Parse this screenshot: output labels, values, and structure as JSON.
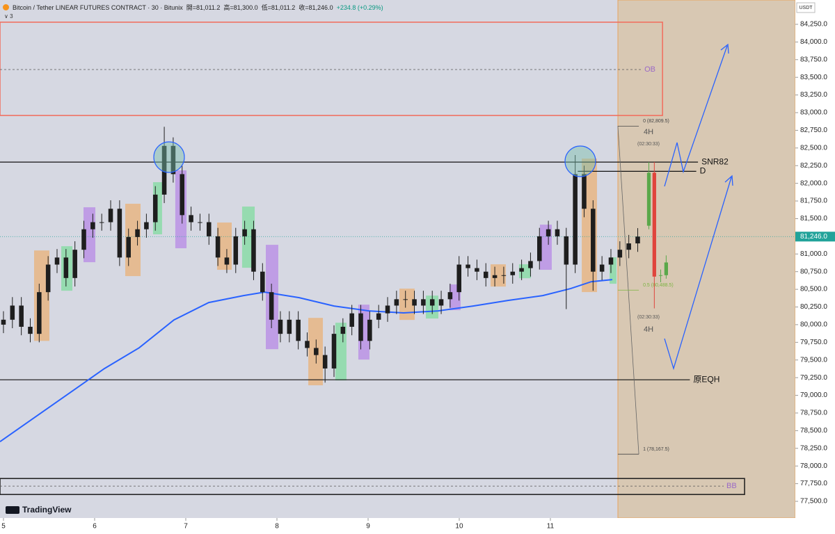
{
  "header": {
    "symbol": "Bitcoin / Tether LINEAR FUTURES CONTRACT · 30 · Bitunix",
    "open": "開=81,011.2",
    "high": "高=81,300.0",
    "low": "低=81,011.2",
    "close": "收=81,246.0",
    "change": "+234.8 (+0.29%)",
    "indicators": "3",
    "currency": "USDT",
    "logo": "TradingView"
  },
  "annotations": [
    "4H",
    "(02:30:33)",
    "(02:30:33)",
    "4H"
  ],
  "chart_data": {
    "type": "candlestick",
    "xlim": [
      4.962,
      13.687
    ],
    "ylim": [
      77264,
      84594
    ],
    "xticks": [
      5,
      6,
      7,
      8,
      9,
      10,
      11
    ],
    "yticks": [
      {
        "value": 77500,
        "label": "77,500.0"
      },
      {
        "value": 77750,
        "label": "77,750.0"
      },
      {
        "value": 78000,
        "label": "78,000.0"
      },
      {
        "value": 78250,
        "label": "78,250.0"
      },
      {
        "value": 78500,
        "label": "78,500.0"
      },
      {
        "value": 78750,
        "label": "78,750.0"
      },
      {
        "value": 79000,
        "label": "79,000.0"
      },
      {
        "value": 79250,
        "label": "79,250.0"
      },
      {
        "value": 79500,
        "label": "79,500.0"
      },
      {
        "value": 79750,
        "label": "79,750.0"
      },
      {
        "value": 80000,
        "label": "80,000.0"
      },
      {
        "value": 80250,
        "label": "80,250.0"
      },
      {
        "value": 80500,
        "label": "80,500.0"
      },
      {
        "value": 80750,
        "label": "80,750.0"
      },
      {
        "value": 81000,
        "label": "81,000.0"
      },
      {
        "value": 81250,
        "label": "81,250.0"
      },
      {
        "value": 81500,
        "label": "81,500.0"
      },
      {
        "value": 81750,
        "label": "81,750.0"
      },
      {
        "value": 82000,
        "label": "82,000.0"
      },
      {
        "value": 82250,
        "label": "82,250.0"
      },
      {
        "value": 82500,
        "label": "82,500.0"
      },
      {
        "value": 82750,
        "label": "82,750.0"
      },
      {
        "value": 83000,
        "label": "83,000.0"
      },
      {
        "value": 83250,
        "label": "83,250.0"
      },
      {
        "value": 83500,
        "label": "83,500.0"
      },
      {
        "value": 83750,
        "label": "83,750.0"
      },
      {
        "value": 84000,
        "label": "84,000.0"
      },
      {
        "value": 84250,
        "label": "84,250.0"
      }
    ],
    "boxes": [
      {
        "x0": 5.336,
        "x1": 5.504,
        "top": 81050,
        "bottom": 79770,
        "color": "#e8b47e"
      },
      {
        "x0": 5.634,
        "x1": 5.756,
        "top": 81110,
        "bottom": 80480,
        "color": "#86dca4"
      },
      {
        "x0": 5.878,
        "x1": 6.008,
        "top": 81661,
        "bottom": 80884,
        "color": "#b98ee6"
      },
      {
        "x0": 6.336,
        "x1": 6.504,
        "top": 81711,
        "bottom": 80687,
        "color": "#e8b47e"
      },
      {
        "x0": 6.641,
        "x1": 6.74,
        "top": 82016,
        "bottom": 81278,
        "color": "#86dca4"
      },
      {
        "x0": 6.885,
        "x1": 7.008,
        "top": 82183,
        "bottom": 81081,
        "color": "#b98ee6"
      },
      {
        "x0": 7.344,
        "x1": 7.504,
        "top": 81445,
        "bottom": 80776,
        "color": "#e8b47e"
      },
      {
        "x0": 7.618,
        "x1": 7.756,
        "top": 81671,
        "bottom": 80805,
        "color": "#86dca4"
      },
      {
        "x0": 7.878,
        "x1": 8.015,
        "top": 81130,
        "bottom": 79653,
        "color": "#b98ee6"
      },
      {
        "x0": 8.344,
        "x1": 8.504,
        "top": 80096,
        "bottom": 79142,
        "color": "#e8b47e"
      },
      {
        "x0": 8.641,
        "x1": 8.763,
        "top": 80027,
        "bottom": 79211,
        "color": "#86dca4"
      },
      {
        "x0": 8.893,
        "x1": 9.015,
        "top": 80283,
        "bottom": 79506,
        "color": "#b98ee6"
      },
      {
        "x0": 9.344,
        "x1": 9.511,
        "top": 80510,
        "bottom": 80067,
        "color": "#e8b47e"
      },
      {
        "x0": 9.634,
        "x1": 9.771,
        "top": 80411,
        "bottom": 80087,
        "color": "#86dca4"
      },
      {
        "x0": 9.893,
        "x1": 10.015,
        "top": 80569,
        "bottom": 80205,
        "color": "#b98ee6"
      },
      {
        "x0": 10.344,
        "x1": 10.511,
        "top": 80854,
        "bottom": 80539,
        "color": "#e8b47e"
      },
      {
        "x0": 10.656,
        "x1": 10.786,
        "top": 80854,
        "bottom": 80657,
        "color": "#86dca4"
      },
      {
        "x0": 10.885,
        "x1": 11.015,
        "top": 81415,
        "bottom": 80776,
        "color": "#b98ee6"
      },
      {
        "x0": 11.344,
        "x1": 11.511,
        "top": 82350,
        "bottom": 80461,
        "color": "#e8b47e"
      },
      {
        "x0": 11.649,
        "x1": 11.725,
        "top": 80953,
        "bottom": 80579,
        "color": "#86dca4"
      }
    ],
    "zones": [
      {
        "label": "OB",
        "x1": 12.23,
        "top": 84280,
        "bottom": 82960,
        "mid": 83610,
        "color": "#f26b5b",
        "label_color": "#9b6ac6"
      },
      {
        "label": "BB",
        "x1": 13.13,
        "top": 77823,
        "bottom": 77597,
        "mid": 77715,
        "color": "#1a1a1a",
        "label_color": "#9b6ac6"
      }
    ],
    "levels": [
      {
        "name": "SNR82",
        "value": 82300,
        "x0": 4.962,
        "x1": 12.619
      },
      {
        "name": "D",
        "value": 82170,
        "x0": 11.3,
        "x1": 12.6
      },
      {
        "name": "原EQH",
        "value": 79220,
        "x0": 4.962,
        "x1": 12.53
      }
    ],
    "ema": {
      "color": "#2962ff",
      "x": [
        4.962,
        5.344,
        5.725,
        6.107,
        6.489,
        6.87,
        7.252,
        7.634,
        7.863,
        8.244,
        8.626,
        9.008,
        9.389,
        9.771,
        10.153,
        10.534,
        10.916,
        11.221,
        11.45,
        11.679
      ],
      "values": [
        78344,
        78689,
        79033,
        79378,
        79673,
        80067,
        80313,
        80411,
        80461,
        80382,
        80264,
        80195,
        80166,
        80195,
        80264,
        80343,
        80411,
        80510,
        80608,
        80638
      ]
    },
    "candle_sets": [
      {
        "up_color": "#1e1e1e",
        "down_color": "#1e1e1e",
        "width": 0.05,
        "x": [
          5,
          5.098,
          5.196,
          5.294,
          5.392,
          5.49,
          5.588,
          5.686,
          5.784,
          5.882,
          5.98,
          6.078,
          6.176,
          6.274,
          6.372,
          6.47,
          6.568,
          6.666,
          6.764,
          6.862,
          6.96,
          7.058,
          7.156,
          7.254,
          7.352,
          7.45,
          7.548,
          7.646,
          7.744,
          7.842,
          7.94,
          8.038,
          8.136,
          8.234,
          8.332,
          8.43,
          8.528,
          8.626,
          8.724,
          8.822,
          8.92,
          9.018,
          9.116,
          9.214,
          9.312,
          9.41,
          9.508,
          9.606,
          9.704,
          9.802,
          9.9,
          9.998,
          10.096,
          10.194,
          10.292,
          10.39,
          10.488,
          10.586,
          10.684,
          10.782,
          10.88,
          10.978,
          11.076,
          11.174,
          11.272,
          11.37,
          11.468,
          11.566,
          11.664,
          11.762,
          11.86,
          11.958
        ],
        "open": [
          80000,
          80070,
          80270,
          79970,
          79870,
          80460,
          80850,
          80950,
          80660,
          81060,
          81350,
          81450,
          81450,
          81640,
          80950,
          81240,
          81350,
          81450,
          81840,
          82530,
          82130,
          81550,
          81450,
          81450,
          81250,
          80950,
          80850,
          81250,
          81350,
          80750,
          80460,
          80070,
          79870,
          80070,
          79770,
          79670,
          79570,
          79380,
          79870,
          79970,
          80160,
          79770,
          80070,
          80160,
          80270,
          80360,
          80360,
          80270,
          80360,
          80270,
          80360,
          80460,
          80850,
          80800,
          80750,
          80660,
          80700,
          80700,
          80750,
          80800,
          80900,
          81250,
          81350,
          81250,
          80850,
          82130,
          81640,
          80750,
          80850,
          80950,
          81060,
          81150
        ],
        "high": [
          80190,
          80390,
          80390,
          80090,
          80580,
          80970,
          81070,
          81070,
          81180,
          81470,
          81570,
          81570,
          81760,
          81760,
          81360,
          81470,
          81570,
          81960,
          82800,
          82650,
          82250,
          81670,
          81570,
          81570,
          81370,
          81070,
          81370,
          81470,
          81470,
          80870,
          80580,
          80190,
          80190,
          80190,
          79890,
          79790,
          79690,
          79990,
          80090,
          80280,
          80280,
          80190,
          80280,
          80390,
          80480,
          80480,
          80480,
          80480,
          80480,
          80480,
          80580,
          80970,
          80970,
          80920,
          80870,
          80820,
          80820,
          80870,
          80920,
          81020,
          81370,
          81470,
          81470,
          81370,
          82400,
          82250,
          81760,
          80970,
          81070,
          81180,
          81270,
          81366
        ],
        "low": [
          79880,
          79950,
          79850,
          79750,
          79750,
          80340,
          80730,
          80540,
          80540,
          80940,
          81230,
          81330,
          81330,
          80830,
          80830,
          81120,
          81230,
          81330,
          81720,
          82010,
          81430,
          81330,
          81330,
          81130,
          80830,
          80730,
          80730,
          81130,
          80630,
          80340,
          79950,
          79750,
          79750,
          79650,
          79550,
          79450,
          79180,
          79260,
          79750,
          79850,
          79650,
          79650,
          79950,
          80040,
          80150,
          80240,
          80150,
          80150,
          80150,
          80150,
          80240,
          80340,
          80680,
          80630,
          80540,
          80540,
          80580,
          80580,
          80630,
          80680,
          80780,
          81130,
          81130,
          80220,
          80730,
          81520,
          80480,
          80630,
          80730,
          80830,
          80940,
          81030
        ],
        "close": [
          80070,
          80270,
          79970,
          79870,
          80460,
          80850,
          80950,
          80660,
          81060,
          81350,
          81450,
          81450,
          81640,
          80950,
          81240,
          81350,
          81450,
          81840,
          82530,
          82130,
          81550,
          81450,
          81450,
          81250,
          80950,
          80850,
          81250,
          81350,
          80750,
          80460,
          80070,
          79870,
          80070,
          79770,
          79670,
          79570,
          79380,
          79870,
          79970,
          80160,
          79770,
          80070,
          80160,
          80270,
          80360,
          80360,
          80270,
          80360,
          80270,
          80360,
          80460,
          80850,
          80800,
          80750,
          80660,
          80700,
          80700,
          80750,
          80800,
          80900,
          81250,
          81350,
          81250,
          80850,
          82130,
          81640,
          80750,
          80850,
          80950,
          81060,
          81150,
          81246
        ]
      },
      {
        "up_color": "#5aa84a",
        "down_color": "#e0443c",
        "width": 0.04,
        "x": [
          12.08,
          12.14,
          12.21,
          12.27
        ],
        "open": [
          81400,
          82150,
          80690,
          80700
        ],
        "high": [
          82300,
          82300,
          80780,
          80980
        ],
        "low": [
          81350,
          80230,
          80600,
          80650
        ],
        "close": [
          82150,
          80680,
          80700,
          80880
        ]
      }
    ],
    "fib": {
      "x0": 11.74,
      "x1": 11.97,
      "levels": [
        {
          "value": 82809.5,
          "label": "0 (82,809.5)",
          "color": "#444444"
        },
        {
          "value": 78167.5,
          "label": "1 (78,167.5)",
          "color": "#444444"
        },
        {
          "value": 80488.5,
          "label": "0.5 (80,488.5)",
          "color": "#7cb342"
        }
      ]
    },
    "current_price": {
      "value": 81246,
      "label": "81,246.0",
      "color": "#22a39a"
    }
  }
}
